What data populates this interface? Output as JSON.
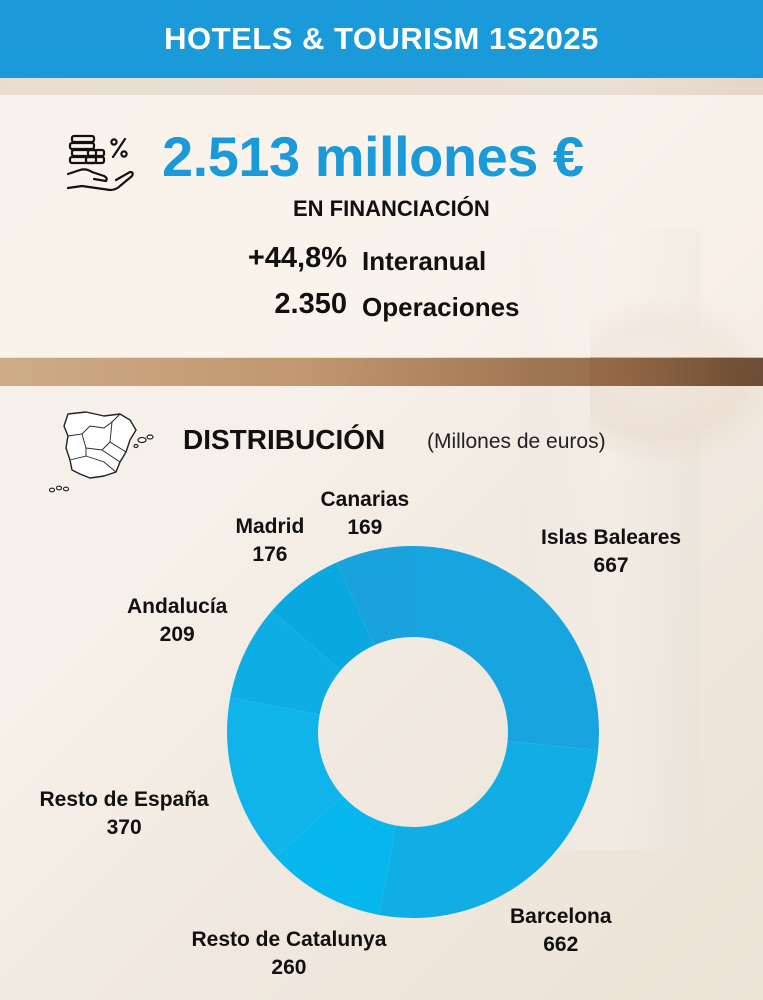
{
  "header": {
    "title": "HOTELS & TOURISM 1S2025"
  },
  "summary": {
    "amount": "2.513 millones €",
    "amount_label": "EN FINANCIACIÓN",
    "growth_value": "+44,8%",
    "growth_label": "Interanual",
    "operations_value": "2.350",
    "operations_label": "Operaciones"
  },
  "distribution": {
    "title": "DISTRIBUCIÓN",
    "subtitle": "(Millones de euros)"
  },
  "colors": {
    "brand_blue": "#1a9ad9",
    "slice_colors": [
      "#18a4df",
      "#11aee6",
      "#06b7ed",
      "#10b4ea",
      "#0eaee4",
      "#0aa8e0",
      "#1aa2dc"
    ]
  },
  "icons": {
    "money": "hand-coins-percent-icon",
    "map": "spain-map-icon"
  },
  "chart_data": {
    "type": "pie",
    "title": "DISTRIBUCIÓN",
    "subtitle": "(Millones de euros)",
    "categories": [
      "Islas Baleares",
      "Barcelona",
      "Resto de Catalunya",
      "Resto de España",
      "Andalucía",
      "Madrid",
      "Canarias"
    ],
    "values": [
      667,
      662,
      260,
      370,
      209,
      176,
      169
    ],
    "total": 2513,
    "value_labels": [
      "667",
      "662",
      "260",
      "370",
      "209",
      "176",
      "169"
    ]
  }
}
